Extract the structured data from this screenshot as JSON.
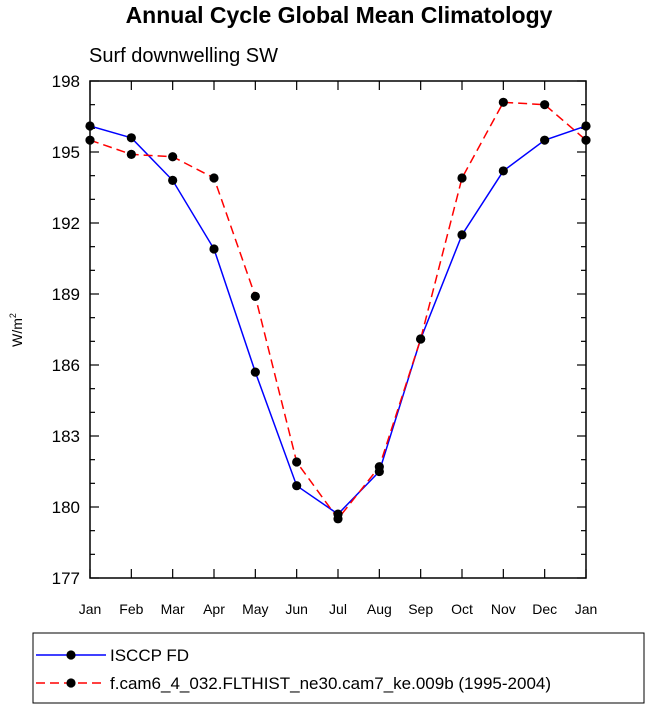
{
  "chart_data": {
    "type": "line",
    "title": "Annual Cycle Global Mean Climatology",
    "subtitle": "Surf downwelling SW",
    "ylabel": "W/m",
    "ylabel_superscript": "2",
    "xlabel": "",
    "categories": [
      "Jan",
      "Feb",
      "Mar",
      "Apr",
      "May",
      "Jun",
      "Jul",
      "Aug",
      "Sep",
      "Oct",
      "Nov",
      "Dec",
      "Jan"
    ],
    "ylim": [
      177,
      198
    ],
    "yticks": [
      "177",
      "180",
      "183",
      "186",
      "189",
      "192",
      "195",
      "198"
    ],
    "grid": false,
    "legend_position": "bottom",
    "series": [
      {
        "name": "ISCCP FD",
        "color": "#0000ff",
        "line_style": "solid",
        "marker": "filled-circle",
        "values": [
          196.1,
          195.6,
          193.8,
          190.9,
          185.7,
          180.9,
          179.7,
          181.5,
          187.1,
          191.5,
          194.2,
          195.5,
          196.1
        ]
      },
      {
        "name": "f.cam6_4_032.FLTHIST_ne30.cam7_ke.009b (1995-2004)",
        "color": "#ff0000",
        "line_style": "dashed",
        "marker": "filled-circle",
        "values": [
          195.5,
          194.9,
          194.8,
          193.9,
          188.9,
          181.9,
          179.5,
          181.7,
          187.1,
          193.9,
          197.1,
          197.0,
          195.5
        ]
      }
    ]
  }
}
